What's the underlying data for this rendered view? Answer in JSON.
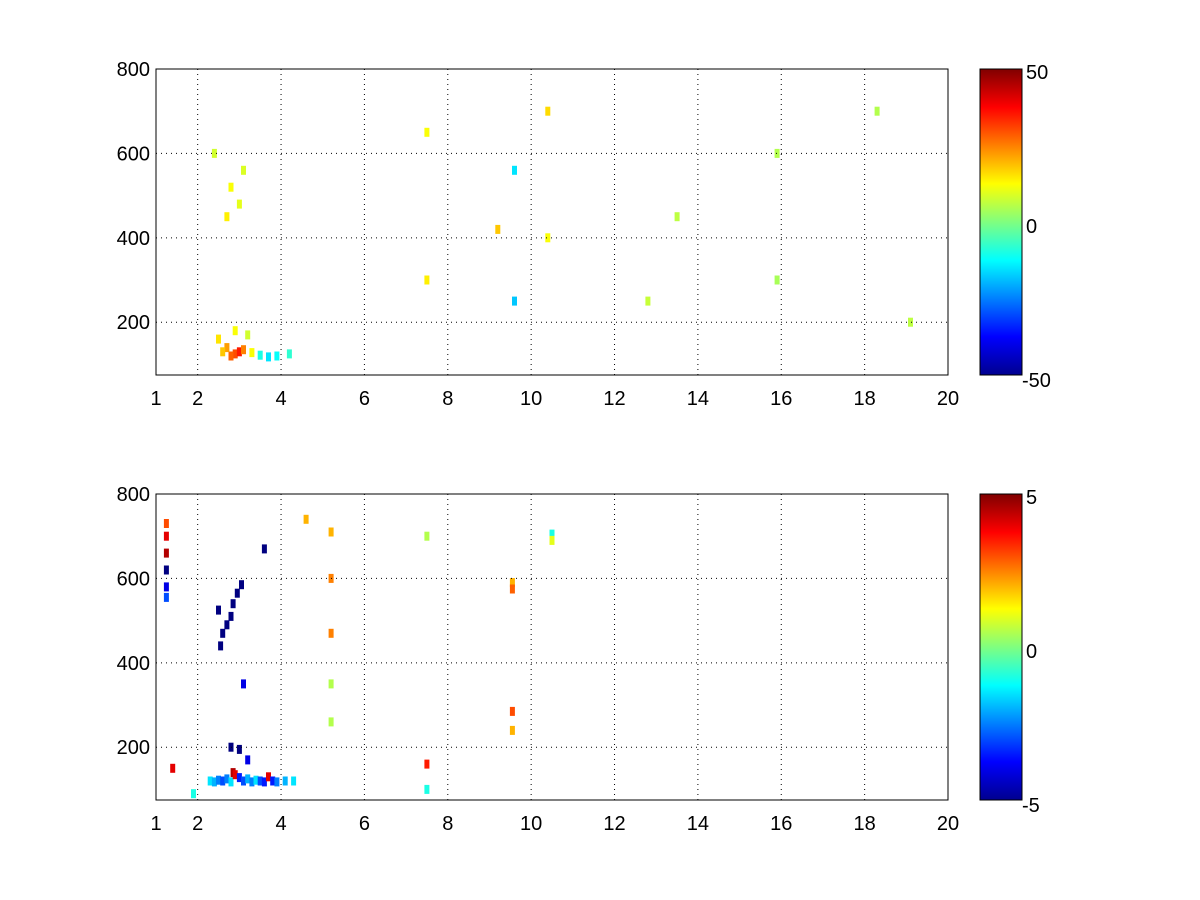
{
  "chart_data": [
    {
      "type": "heatmap",
      "title": "",
      "xlabel": "",
      "ylabel": "",
      "xlim": [
        1,
        20
      ],
      "ylim": [
        75,
        800
      ],
      "xticks": [
        1,
        2,
        4,
        6,
        8,
        10,
        12,
        14,
        16,
        18,
        20
      ],
      "yticks": [
        200,
        400,
        600,
        800
      ],
      "grid": true,
      "colormap": "jet",
      "colorbar": {
        "min": -50,
        "max": 50,
        "ticks": [
          -50,
          0,
          50
        ]
      },
      "background": "#ffffff",
      "cells": [
        {
          "x": 2.9,
          "y": 125,
          "v": 30
        },
        {
          "x": 3.0,
          "y": 130,
          "v": 35
        },
        {
          "x": 2.8,
          "y": 120,
          "v": 28
        },
        {
          "x": 3.1,
          "y": 135,
          "v": 25
        },
        {
          "x": 2.7,
          "y": 140,
          "v": 22
        },
        {
          "x": 2.6,
          "y": 130,
          "v": 18
        },
        {
          "x": 3.3,
          "y": 128,
          "v": 12
        },
        {
          "x": 3.5,
          "y": 122,
          "v": -10
        },
        {
          "x": 3.7,
          "y": 118,
          "v": -15
        },
        {
          "x": 3.9,
          "y": 120,
          "v": -12
        },
        {
          "x": 4.2,
          "y": 125,
          "v": -8
        },
        {
          "x": 2.5,
          "y": 160,
          "v": 15
        },
        {
          "x": 2.9,
          "y": 180,
          "v": 12
        },
        {
          "x": 3.2,
          "y": 170,
          "v": 8
        },
        {
          "x": 2.8,
          "y": 520,
          "v": 12
        },
        {
          "x": 3.0,
          "y": 480,
          "v": 10
        },
        {
          "x": 2.7,
          "y": 450,
          "v": 14
        },
        {
          "x": 3.1,
          "y": 560,
          "v": 9
        },
        {
          "x": 2.4,
          "y": 600,
          "v": 8
        },
        {
          "x": 7.5,
          "y": 300,
          "v": 14
        },
        {
          "x": 7.5,
          "y": 650,
          "v": 12
        },
        {
          "x": 9.2,
          "y": 420,
          "v": 18
        },
        {
          "x": 9.6,
          "y": 250,
          "v": -18
        },
        {
          "x": 9.6,
          "y": 560,
          "v": -15
        },
        {
          "x": 10.4,
          "y": 700,
          "v": 16
        },
        {
          "x": 10.4,
          "y": 400,
          "v": 12
        },
        {
          "x": 15.9,
          "y": 300,
          "v": 4
        },
        {
          "x": 15.9,
          "y": 600,
          "v": 5
        },
        {
          "x": 13.5,
          "y": 450,
          "v": 6
        },
        {
          "x": 12.8,
          "y": 250,
          "v": 7
        },
        {
          "x": 18.3,
          "y": 700,
          "v": 5
        },
        {
          "x": 19.1,
          "y": 200,
          "v": 6
        }
      ]
    },
    {
      "type": "heatmap",
      "title": "",
      "xlabel": "",
      "ylabel": "",
      "xlim": [
        1,
        20
      ],
      "ylim": [
        75,
        800
      ],
      "xticks": [
        1,
        2,
        4,
        6,
        8,
        10,
        12,
        14,
        16,
        18,
        20
      ],
      "yticks": [
        200,
        400,
        600,
        800
      ],
      "grid": true,
      "colormap": "jet",
      "colorbar": {
        "min": -5,
        "max": 5,
        "ticks": [
          -5,
          0,
          5
        ]
      },
      "background": "#ffffff",
      "cells": [
        {
          "x": 1.25,
          "y": 730,
          "v": 3
        },
        {
          "x": 1.25,
          "y": 700,
          "v": 4
        },
        {
          "x": 1.25,
          "y": 660,
          "v": 4.5
        },
        {
          "x": 1.25,
          "y": 620,
          "v": -5
        },
        {
          "x": 1.25,
          "y": 580,
          "v": -4
        },
        {
          "x": 1.25,
          "y": 555,
          "v": -3
        },
        {
          "x": 1.4,
          "y": 150,
          "v": 4
        },
        {
          "x": 2.5,
          "y": 525,
          "v": -5
        },
        {
          "x": 2.55,
          "y": 440,
          "v": -5
        },
        {
          "x": 2.6,
          "y": 470,
          "v": -5
        },
        {
          "x": 2.7,
          "y": 490,
          "v": -5
        },
        {
          "x": 2.8,
          "y": 510,
          "v": -5
        },
        {
          "x": 2.85,
          "y": 540,
          "v": -5
        },
        {
          "x": 2.95,
          "y": 565,
          "v": -5
        },
        {
          "x": 3.05,
          "y": 585,
          "v": -5
        },
        {
          "x": 3.6,
          "y": 670,
          "v": -5
        },
        {
          "x": 3.1,
          "y": 350,
          "v": -4
        },
        {
          "x": 2.3,
          "y": 120,
          "v": -1.5
        },
        {
          "x": 2.4,
          "y": 118,
          "v": -2
        },
        {
          "x": 2.5,
          "y": 122,
          "v": -2.5
        },
        {
          "x": 2.6,
          "y": 120,
          "v": -3
        },
        {
          "x": 2.7,
          "y": 125,
          "v": -2.5
        },
        {
          "x": 2.8,
          "y": 118,
          "v": -1.5
        },
        {
          "x": 2.85,
          "y": 140,
          "v": 4.5
        },
        {
          "x": 2.9,
          "y": 135,
          "v": 4
        },
        {
          "x": 3.0,
          "y": 128,
          "v": -3.5
        },
        {
          "x": 3.1,
          "y": 120,
          "v": -3
        },
        {
          "x": 3.2,
          "y": 125,
          "v": -2
        },
        {
          "x": 3.3,
          "y": 118,
          "v": -2.5
        },
        {
          "x": 3.4,
          "y": 122,
          "v": -1.5
        },
        {
          "x": 3.5,
          "y": 120,
          "v": -3
        },
        {
          "x": 3.6,
          "y": 118,
          "v": -3.5
        },
        {
          "x": 3.7,
          "y": 130,
          "v": 4
        },
        {
          "x": 3.8,
          "y": 120,
          "v": -3.5
        },
        {
          "x": 3.9,
          "y": 118,
          "v": -2.5
        },
        {
          "x": 4.1,
          "y": 120,
          "v": -2
        },
        {
          "x": 4.3,
          "y": 120,
          "v": -1.5
        },
        {
          "x": 2.8,
          "y": 200,
          "v": -5
        },
        {
          "x": 3.0,
          "y": 195,
          "v": -5
        },
        {
          "x": 3.2,
          "y": 170,
          "v": -4
        },
        {
          "x": 1.9,
          "y": 90,
          "v": -1
        },
        {
          "x": 4.6,
          "y": 740,
          "v": 2
        },
        {
          "x": 5.2,
          "y": 600,
          "v": 2.5
        },
        {
          "x": 5.2,
          "y": 470,
          "v": 2.5
        },
        {
          "x": 5.2,
          "y": 350,
          "v": 0.5
        },
        {
          "x": 5.2,
          "y": 260,
          "v": 0.5
        },
        {
          "x": 5.2,
          "y": 710,
          "v": 2
        },
        {
          "x": 7.5,
          "y": 700,
          "v": 0.5
        },
        {
          "x": 7.5,
          "y": 160,
          "v": 3.5
        },
        {
          "x": 7.5,
          "y": 100,
          "v": -1
        },
        {
          "x": 9.55,
          "y": 590,
          "v": 2
        },
        {
          "x": 9.55,
          "y": 575,
          "v": 2.8
        },
        {
          "x": 9.55,
          "y": 285,
          "v": 3
        },
        {
          "x": 9.55,
          "y": 240,
          "v": 2
        },
        {
          "x": 10.5,
          "y": 705,
          "v": -1
        },
        {
          "x": 10.5,
          "y": 690,
          "v": 1
        }
      ]
    }
  ],
  "ui": {
    "panel_1_colorbar_ticks": [
      "50",
      "0",
      "-50"
    ],
    "panel_2_colorbar_ticks": [
      "5",
      "0",
      "-5"
    ],
    "x_tick_labels": [
      "1",
      "2",
      "4",
      "6",
      "8",
      "10",
      "12",
      "14",
      "16",
      "18",
      "20"
    ],
    "y_tick_labels": [
      "200",
      "400",
      "600",
      "800"
    ]
  }
}
